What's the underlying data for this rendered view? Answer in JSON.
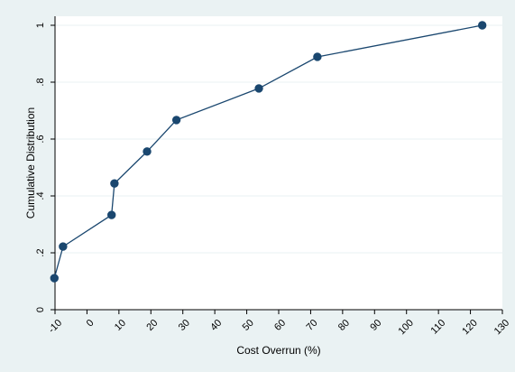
{
  "chart_data": {
    "type": "line",
    "xlabel": "Cost Overrun (%)",
    "ylabel": "Cumulative Distribution",
    "xlim": [
      -10,
      130
    ],
    "ylim": [
      0,
      1
    ],
    "x_ticks": [
      -10,
      0,
      10,
      20,
      30,
      40,
      50,
      60,
      70,
      80,
      90,
      100,
      110,
      120,
      130
    ],
    "x_tick_labels": [
      "-10",
      "0",
      "10",
      "20",
      "30",
      "40",
      "50",
      "60",
      "70",
      "80",
      "90",
      "100",
      "110",
      "120",
      "130"
    ],
    "y_ticks": [
      0,
      0.2,
      0.4,
      0.6,
      0.8,
      1
    ],
    "y_tick_labels": [
      "0",
      ".2",
      ".4",
      ".6",
      ".8",
      "1"
    ],
    "grid": true,
    "series": [
      {
        "x": [
          -10.2,
          -7.5,
          7.7,
          8.6,
          18.8,
          28.0,
          53.8,
          72.1,
          123.7
        ],
        "y": [
          0.111,
          0.222,
          0.333,
          0.444,
          0.556,
          0.667,
          0.778,
          0.889,
          1.0
        ]
      }
    ],
    "colors": {
      "outer_background": "#eaf2f3",
      "plot_background": "#ffffff",
      "grid": "#eaf2f3",
      "series": "#1a476f",
      "axis": "#000000"
    }
  }
}
